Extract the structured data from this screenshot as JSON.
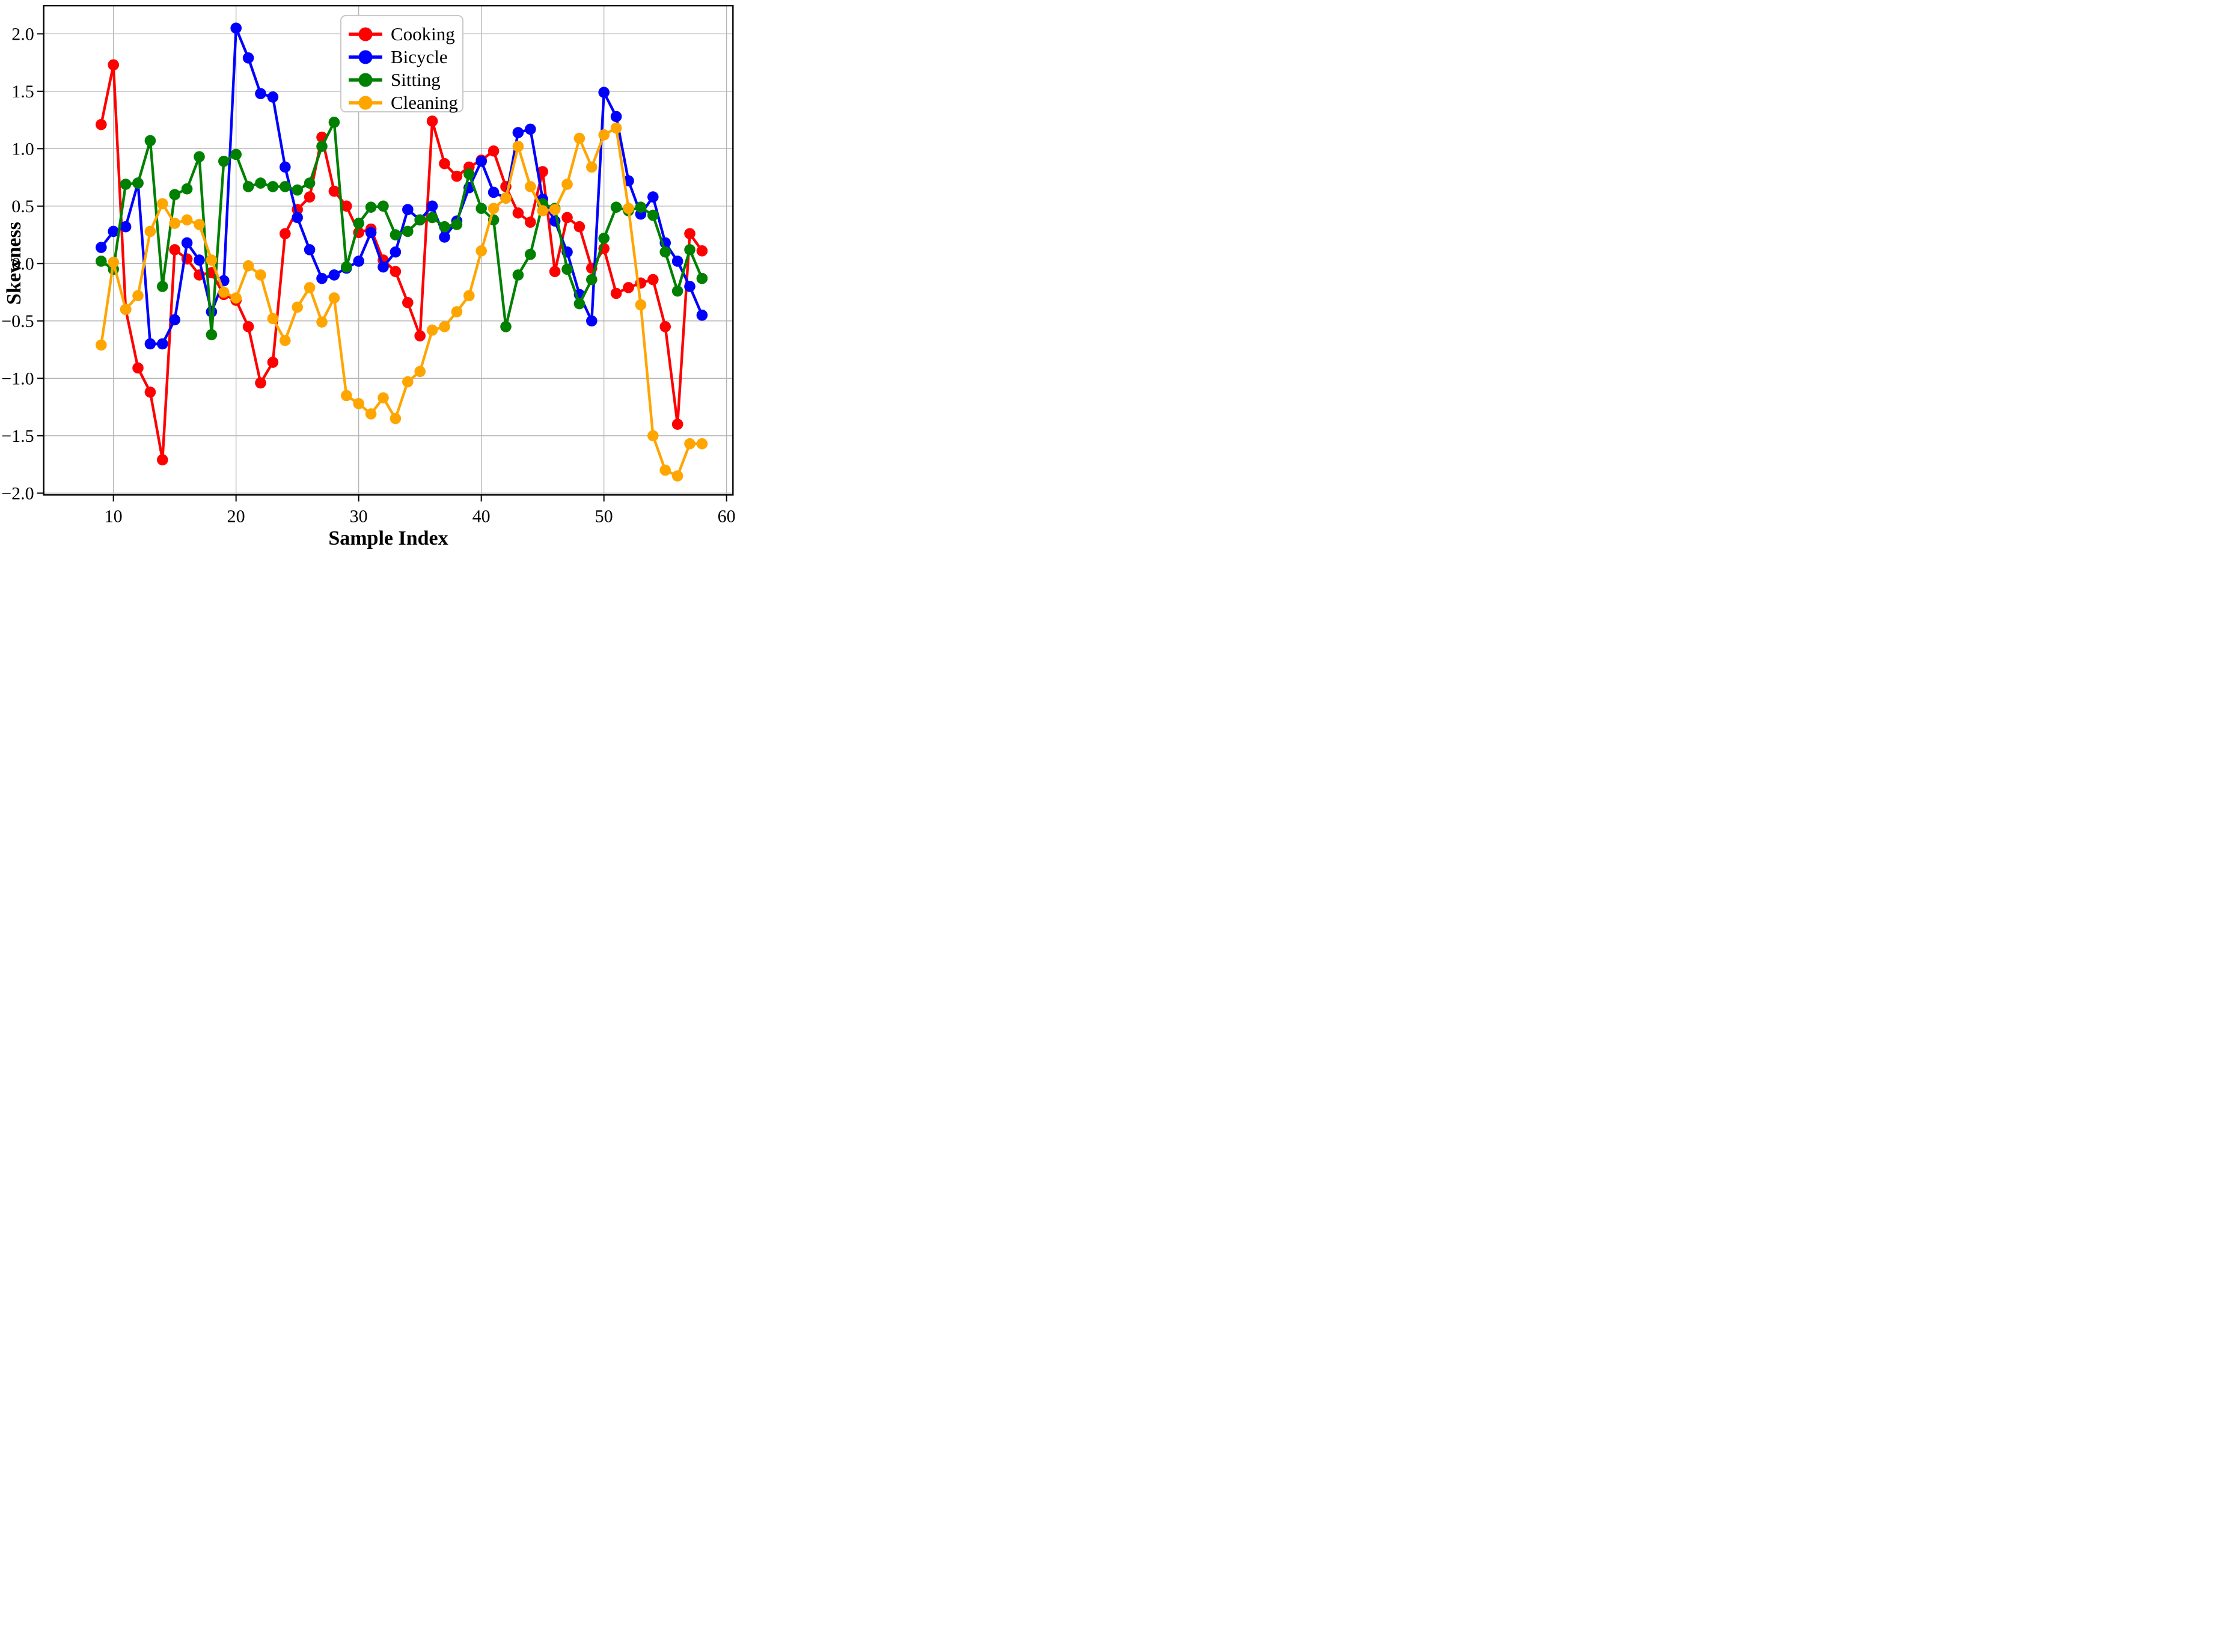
{
  "chart_data": {
    "type": "line",
    "title": "",
    "xlabel": "Sample Index",
    "ylabel": "Skewness",
    "grid": true,
    "legend_position": "upper center",
    "background_color": "#ffffff",
    "grid_color": "#b3b3b3",
    "spine_color": "#000000",
    "xlim": [
      4.4,
      60.5
    ],
    "ylim": [
      -2.045,
      2.245
    ],
    "x_ticks": [
      10,
      20,
      30,
      40,
      50,
      60
    ],
    "x_tick_labels": [
      "10",
      "20",
      "30",
      "40",
      "50",
      "60"
    ],
    "y_ticks": [
      2.0,
      1.5,
      1.0,
      0.5,
      0.0,
      -0.5,
      -1.0,
      -1.5,
      -2.0
    ],
    "y_tick_labels": [
      "2.0",
      "1.5",
      "1.0",
      "0.5",
      "0.0",
      "−0.5",
      "−1.0",
      "−1.5",
      "−2.0"
    ],
    "x": [
      9,
      10,
      11,
      12,
      13,
      14,
      15,
      16,
      17,
      18,
      19,
      20,
      21,
      22,
      23,
      24,
      25,
      26,
      27,
      28,
      29,
      30,
      31,
      32,
      33,
      34,
      35,
      36,
      37,
      38,
      39,
      40,
      41,
      42,
      43,
      44,
      45,
      46,
      47,
      48,
      49,
      50,
      51,
      52,
      53,
      54,
      55,
      56,
      57,
      58
    ],
    "series": [
      {
        "name": "Cooking",
        "color": "#ff0000",
        "values": [
          1.21,
          1.73,
          -0.4,
          -0.91,
          -1.12,
          -1.71,
          0.12,
          0.04,
          -0.1,
          -0.08,
          -0.27,
          -0.32,
          -0.55,
          -1.04,
          -0.86,
          0.26,
          0.47,
          0.58,
          1.1,
          0.63,
          0.5,
          0.27,
          0.3,
          0.03,
          -0.07,
          -0.34,
          -0.63,
          1.24,
          0.87,
          0.76,
          0.84,
          0.9,
          0.98,
          0.67,
          0.44,
          0.36,
          0.8,
          -0.07,
          0.4,
          0.32,
          -0.04,
          0.13,
          -0.26,
          -0.21,
          -0.17,
          -0.14,
          -0.55,
          -1.4,
          0.26,
          0.11
        ]
      },
      {
        "name": "Bicycle",
        "color": "#0000ff",
        "values": [
          0.14,
          0.28,
          0.32,
          0.7,
          -0.7,
          -0.7,
          -0.49,
          0.18,
          0.03,
          -0.42,
          -0.15,
          2.05,
          1.79,
          1.48,
          1.45,
          0.84,
          0.4,
          0.12,
          -0.13,
          -0.1,
          -0.04,
          0.02,
          0.27,
          -0.03,
          0.1,
          0.47,
          0.38,
          0.5,
          0.23,
          0.37,
          0.66,
          0.89,
          0.62,
          0.57,
          1.14,
          1.17,
          0.56,
          0.37,
          0.1,
          -0.27,
          -0.5,
          1.49,
          1.28,
          0.72,
          0.43,
          0.58,
          0.18,
          0.02,
          -0.2,
          -0.45
        ]
      },
      {
        "name": "Sitting",
        "color": "#008000",
        "values": [
          0.02,
          -0.05,
          0.69,
          0.7,
          1.07,
          -0.2,
          0.6,
          0.65,
          0.93,
          -0.62,
          0.89,
          0.95,
          0.67,
          0.7,
          0.67,
          0.67,
          0.64,
          0.7,
          1.02,
          1.23,
          -0.03,
          0.35,
          0.49,
          0.5,
          0.25,
          0.28,
          0.38,
          0.4,
          0.32,
          0.34,
          0.78,
          0.48,
          0.38,
          -0.55,
          -0.1,
          0.08,
          0.52,
          0.48,
          -0.05,
          -0.35,
          -0.14,
          0.22,
          0.49,
          0.46,
          0.49,
          0.42,
          0.1,
          -0.24,
          0.12,
          -0.13
        ]
      },
      {
        "name": "Cleaning",
        "color": "#ffa500",
        "values": [
          -0.71,
          0.01,
          -0.4,
          -0.28,
          0.28,
          0.52,
          0.35,
          0.38,
          0.34,
          0.03,
          -0.25,
          -0.3,
          -0.02,
          -0.1,
          -0.48,
          -0.67,
          -0.38,
          -0.21,
          -0.51,
          -0.3,
          -1.15,
          -1.22,
          -1.31,
          -1.17,
          -1.35,
          -1.03,
          -0.94,
          -0.58,
          -0.55,
          -0.42,
          -0.28,
          0.11,
          0.48,
          0.57,
          1.02,
          0.67,
          0.46,
          0.47,
          0.69,
          1.09,
          0.84,
          1.12,
          1.18,
          0.48,
          -0.36,
          -1.5,
          -1.8,
          -1.85,
          -1.57,
          -1.57
        ]
      }
    ]
  }
}
